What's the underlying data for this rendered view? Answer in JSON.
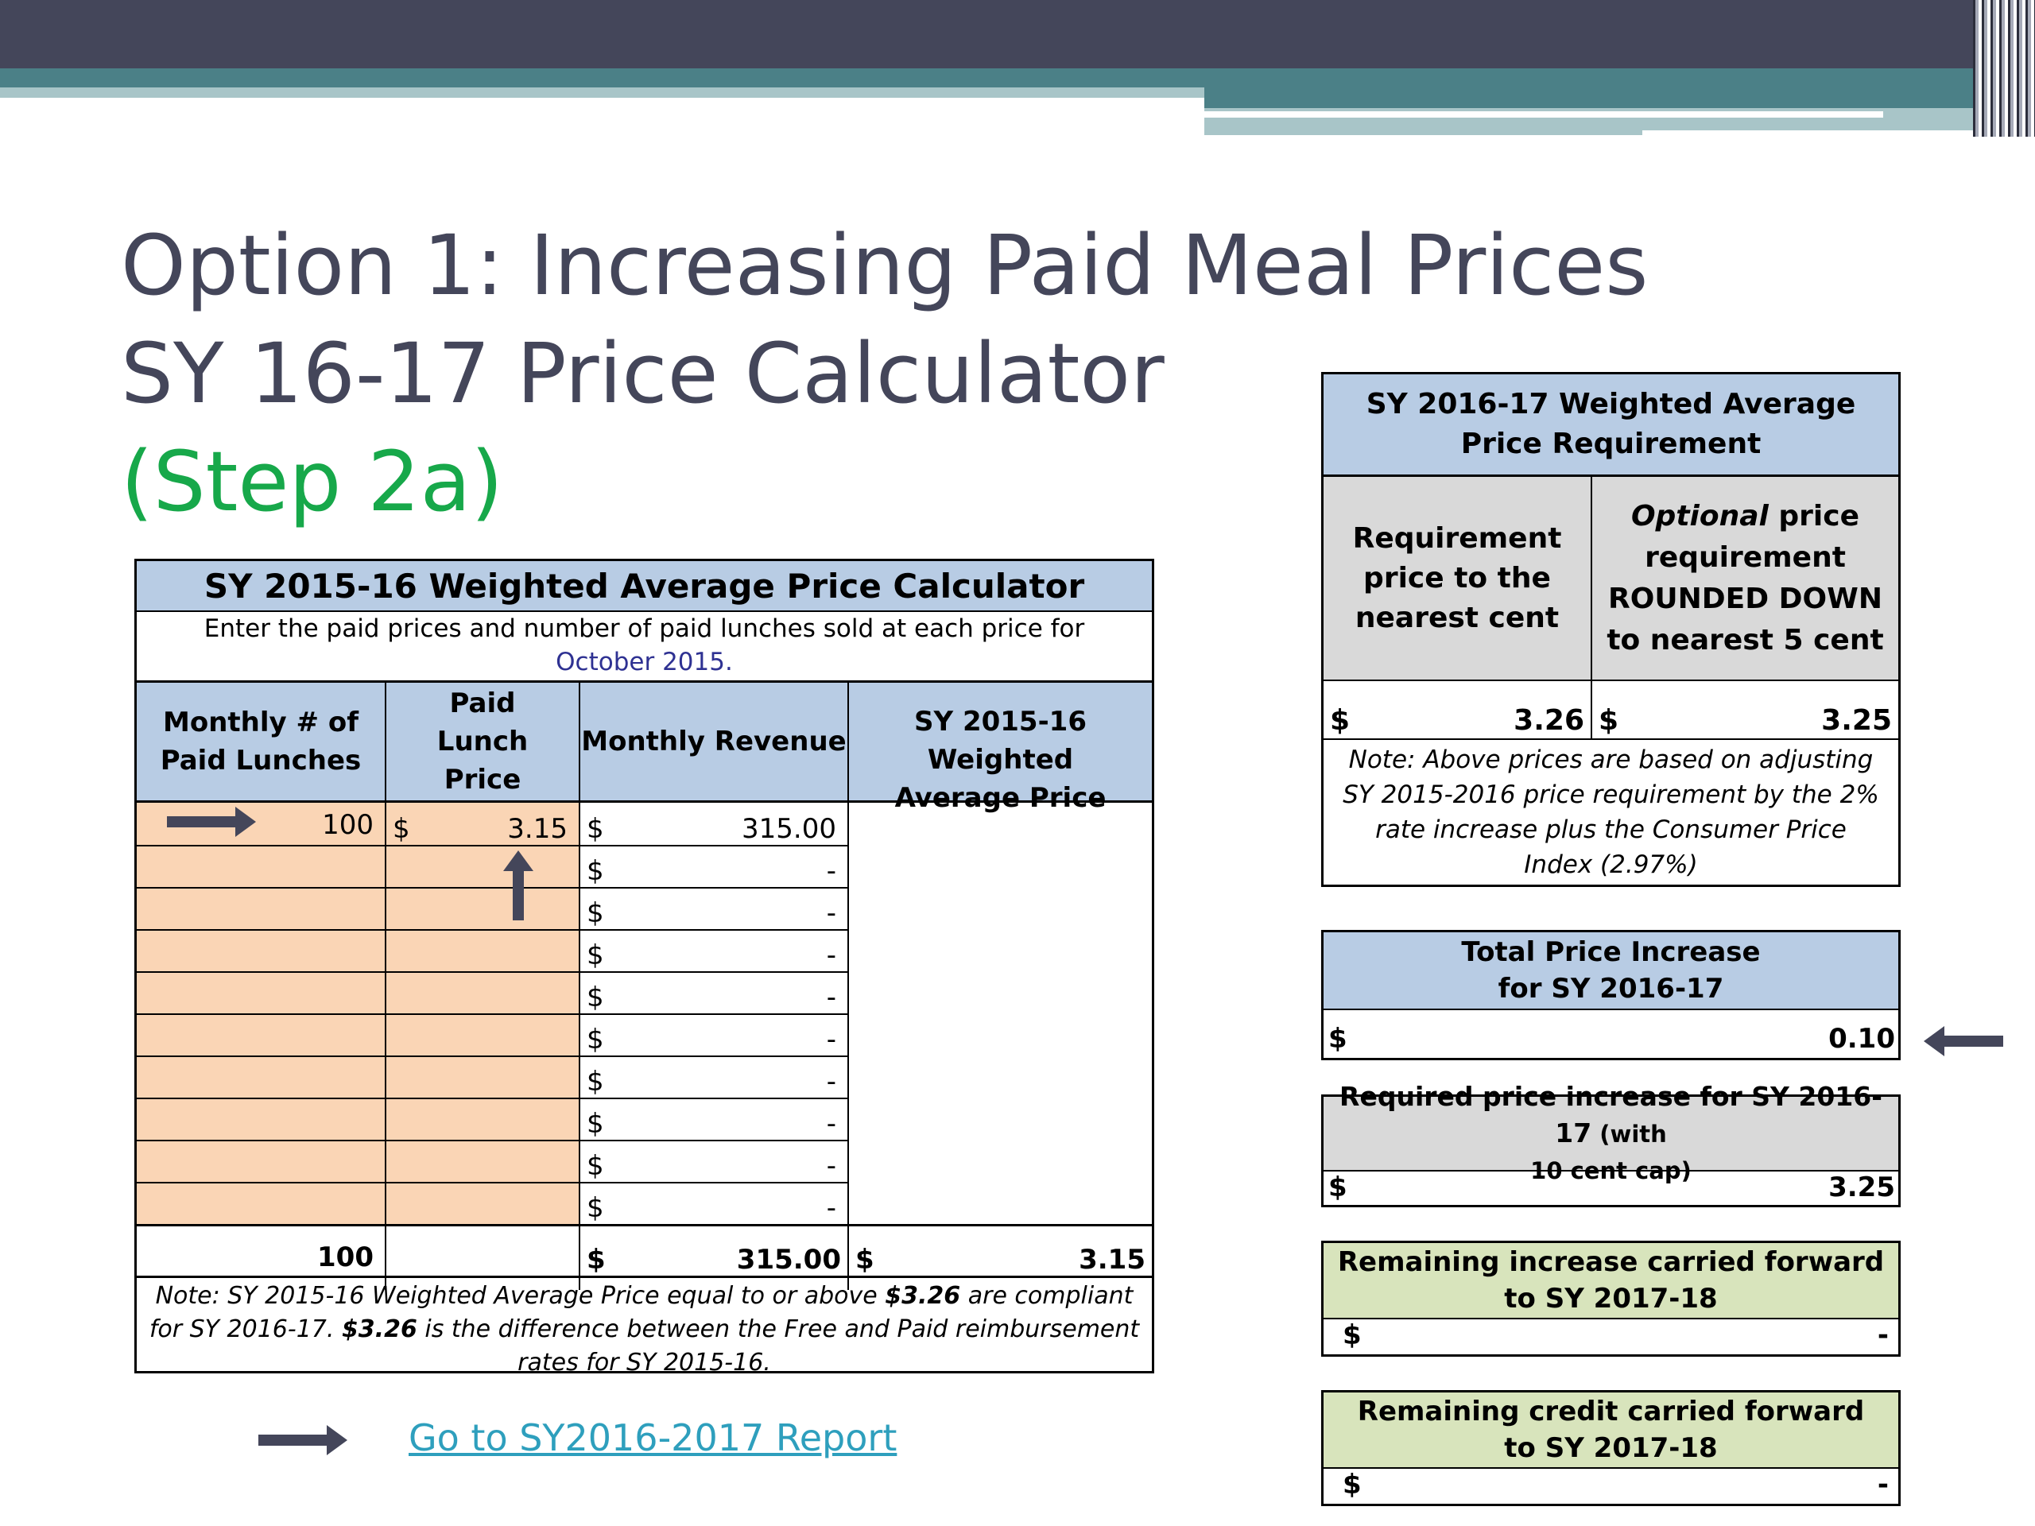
{
  "titles": {
    "line1": "Option 1: Increasing Paid Meal Prices",
    "line2": "SY 16-17 Price Calculator",
    "line3": "(Step 2a)"
  },
  "colors": {
    "title": "#44465a",
    "step": "#17a84a",
    "header_blue": "#b8cce4",
    "input_peach": "#fad5b5",
    "gray": "#d9d9d9",
    "green": "#d8e4bc",
    "link": "#2e9fbd"
  },
  "calculator": {
    "title": "SY 2015-16 Weighted Average Price Calculator",
    "instructions": "Enter the paid prices and number of paid lunches sold at each price for",
    "period": "October 2015",
    "period_suffix": ".",
    "headers": {
      "lunches": "Monthly # of Paid Lunches",
      "price": "Paid Lunch Price",
      "revenue": "Monthly Revenue",
      "weighted": "SY 2015-16 Weighted Average Price"
    },
    "rows": [
      {
        "lunches": "100",
        "price_sign": "$",
        "price": "3.15",
        "rev_sign": "$",
        "revenue": "315.00"
      },
      {
        "lunches": "",
        "price_sign": "",
        "price": "",
        "rev_sign": "$",
        "revenue": "-"
      },
      {
        "lunches": "",
        "price_sign": "",
        "price": "",
        "rev_sign": "$",
        "revenue": "-"
      },
      {
        "lunches": "",
        "price_sign": "",
        "price": "",
        "rev_sign": "$",
        "revenue": "-"
      },
      {
        "lunches": "",
        "price_sign": "",
        "price": "",
        "rev_sign": "$",
        "revenue": "-"
      },
      {
        "lunches": "",
        "price_sign": "",
        "price": "",
        "rev_sign": "$",
        "revenue": "-"
      },
      {
        "lunches": "",
        "price_sign": "",
        "price": "",
        "rev_sign": "$",
        "revenue": "-"
      },
      {
        "lunches": "",
        "price_sign": "",
        "price": "",
        "rev_sign": "$",
        "revenue": "-"
      },
      {
        "lunches": "",
        "price_sign": "",
        "price": "",
        "rev_sign": "$",
        "revenue": "-"
      },
      {
        "lunches": "",
        "price_sign": "",
        "price": "",
        "rev_sign": "$",
        "revenue": "-"
      }
    ],
    "totals": {
      "lunches": "100",
      "rev_sign": "$",
      "revenue": "315.00",
      "avg_sign": "$",
      "weighted_avg": "3.15"
    },
    "note": {
      "p1": "Note:  SY 2015-16 Weighted Average Price equal to or above ",
      "amt1": "$3.26",
      "p2": " are compliant for SY 2016-17. ",
      "amt2": "$3.26",
      "p3": " is the difference between the Free and Paid reimbursement rates for SY 2015-16."
    }
  },
  "requirement": {
    "title": "SY 2016-17 Weighted Average Price Requirement",
    "col1": "Requirement price to the nearest cent",
    "col2_italic": "Optional",
    "col2_rest": " price requirement ROUNDED DOWN to nearest 5 cent",
    "val1_sign": "$",
    "val1": "3.26",
    "val2_sign": "$",
    "val2": "3.25",
    "note": "Note:  Above prices are based on adjusting SY 2015-2016 price requirement by the 2% rate increase plus the Consumer Price Index (2.97%)"
  },
  "total_increase": {
    "title_line1": "Total Price Increase",
    "title_line2": "for SY 2016-17",
    "sign": "$",
    "value": "0.10"
  },
  "required_increase": {
    "title_main": "Required price increase for SY 2016-17",
    "title_small": " (with",
    "title_line2": "10 cent cap)",
    "sign": "$",
    "value": "3.25"
  },
  "remaining_increase": {
    "title_line1": "Remaining increase carried forward",
    "title_line2": "to SY 2017-18",
    "sign": "$",
    "value": "-"
  },
  "remaining_credit": {
    "title_line1": "Remaining credit carried forward",
    "title_line2": "to SY 2017-18",
    "sign": "$",
    "value": "-"
  },
  "report_link": "Go to SY2016-2017 Report"
}
